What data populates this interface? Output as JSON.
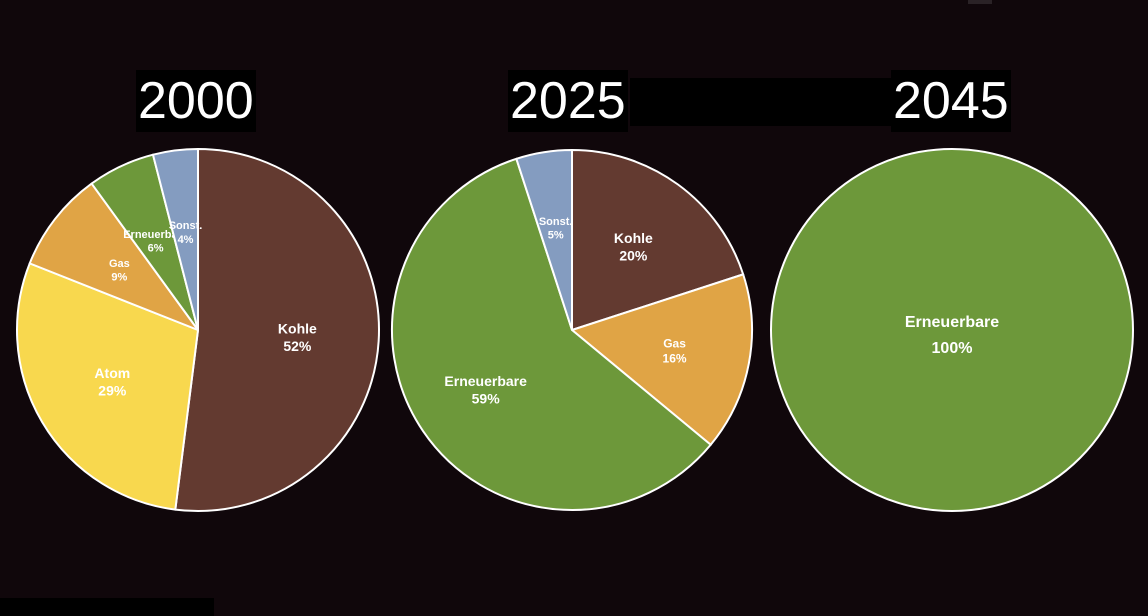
{
  "colors": {
    "background": "#10070b",
    "Kohle": "#633a30",
    "Atom": "#f8d84e",
    "Gas": "#e0a445",
    "Erneuerbare": "#6d983a",
    "Sonst.": "#849cc0",
    "slice_border": "#ffffff"
  },
  "chart_data": [
    {
      "type": "pie",
      "title": "2000",
      "slices": [
        {
          "label": "Kohle",
          "value": 52,
          "value_label": "52%"
        },
        {
          "label": "Atom",
          "value": 29,
          "value_label": "29%"
        },
        {
          "label": "Gas",
          "value": 9,
          "value_label": "9%"
        },
        {
          "label": "Erneuerbare",
          "value": 6,
          "value_label": "6%"
        },
        {
          "label": "Sonst.",
          "value": 4,
          "value_label": "4%"
        }
      ]
    },
    {
      "type": "pie",
      "title": "2025",
      "slices": [
        {
          "label": "Kohle",
          "value": 20,
          "value_label": "20%"
        },
        {
          "label": "Gas",
          "value": 16,
          "value_label": "16%"
        },
        {
          "label": "Erneuerbare",
          "value": 59,
          "value_label": "59%"
        },
        {
          "label": "Sonst.",
          "value": 5,
          "value_label": "5%"
        }
      ]
    },
    {
      "type": "pie",
      "title": "2045",
      "slices": [
        {
          "label": "Erneuerbare",
          "value": 100,
          "value_label": "100%"
        }
      ]
    }
  ]
}
